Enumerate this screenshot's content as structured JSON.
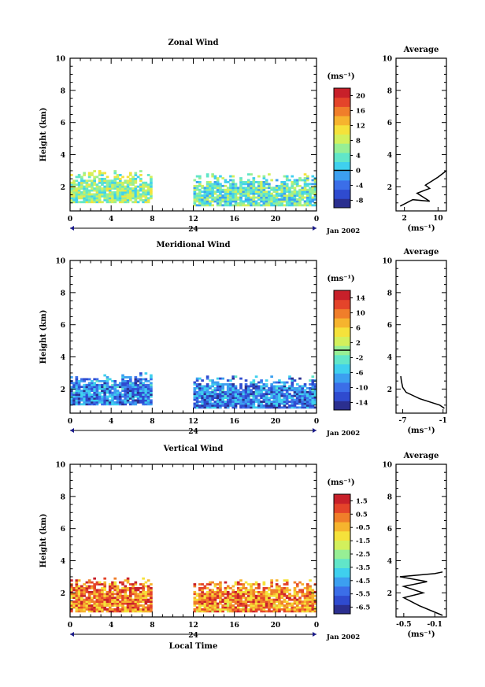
{
  "colors": {
    "colormap": [
      "#2b2f8f",
      "#2f4bcf",
      "#3b6ee8",
      "#3c9ff0",
      "#3fd0ee",
      "#61e6c9",
      "#97ef95",
      "#d3f05c",
      "#f5e23b",
      "#f6b42e",
      "#f07e2a",
      "#e4442a",
      "#c8202a"
    ],
    "profile_line": "#000000",
    "axis": "#000000"
  },
  "date_label": "Jan 2002",
  "x_axis_label": "Local Time",
  "chart_data": [
    {
      "type": "heatmap",
      "title": "Zonal Wind",
      "ylabel": "Height (km)",
      "ylim": [
        0.5,
        10
      ],
      "yticks": [
        2,
        4,
        6,
        8,
        10
      ],
      "xlim": [
        0,
        24
      ],
      "xtick_labels": [
        "0",
        "4",
        "8",
        "12",
        "16",
        "20",
        "0"
      ],
      "day_label": "24",
      "colorbar": {
        "unit": "(ms⁻¹)",
        "ticks": [
          "-8",
          "-4",
          "0",
          "4",
          "8",
          "12",
          "16",
          "20"
        ],
        "range": [
          -10,
          22
        ],
        "marker": 0
      },
      "data_segments": [
        {
          "x": [
            0,
            8
          ],
          "height_range": [
            1.0,
            3.0
          ],
          "typical_value": 6
        },
        {
          "x": [
            12,
            24
          ],
          "height_range": [
            0.8,
            2.8
          ],
          "typical_value": 4
        }
      ],
      "average_profile": {
        "title": "Average",
        "xlabel": "(ms⁻¹)",
        "xticks": [
          "2",
          "10"
        ],
        "xlim": [
          0,
          12
        ],
        "points": [
          [
            1,
            0.8
          ],
          [
            4,
            1.2
          ],
          [
            8,
            1.1
          ],
          [
            5,
            1.6
          ],
          [
            8,
            1.9
          ],
          [
            7,
            2.1
          ],
          [
            10,
            2.6
          ],
          [
            12,
            3.0
          ]
        ]
      }
    },
    {
      "type": "heatmap",
      "title": "Meridional Wind",
      "ylabel": "Height (km)",
      "ylim": [
        0.5,
        10
      ],
      "yticks": [
        2,
        4,
        6,
        8,
        10
      ],
      "xlim": [
        0,
        24
      ],
      "xtick_labels": [
        "0",
        "4",
        "8",
        "12",
        "16",
        "20",
        "0"
      ],
      "day_label": "24",
      "colorbar": {
        "unit": "(ms⁻¹)",
        "ticks": [
          "-14",
          "-10",
          "-6",
          "-2",
          "2",
          "6",
          "10",
          "14"
        ],
        "range": [
          -16,
          16
        ],
        "marker": 0
      },
      "data_segments": [
        {
          "x": [
            0,
            8
          ],
          "height_range": [
            1.0,
            3.0
          ],
          "typical_value": -9
        },
        {
          "x": [
            12,
            24
          ],
          "height_range": [
            0.8,
            2.8
          ],
          "typical_value": -9
        }
      ],
      "average_profile": {
        "title": "Average",
        "xlabel": "(ms⁻¹)",
        "xticks": [
          "-7",
          "-1"
        ],
        "xlim": [
          -8,
          -0.5
        ],
        "points": [
          [
            -0.8,
            0.8
          ],
          [
            -1.5,
            1.0
          ],
          [
            -3,
            1.2
          ],
          [
            -4.5,
            1.4
          ],
          [
            -5.5,
            1.6
          ],
          [
            -6.5,
            1.8
          ],
          [
            -7,
            2.1
          ],
          [
            -7.2,
            2.5
          ],
          [
            -7.3,
            2.8
          ]
        ]
      }
    },
    {
      "type": "heatmap",
      "title": "Vertical Wind",
      "ylabel": "Height (km)",
      "xlabel": "Local Time",
      "ylim": [
        0.5,
        10
      ],
      "yticks": [
        2,
        4,
        6,
        8,
        10
      ],
      "xlim": [
        0,
        24
      ],
      "xtick_labels": [
        "0",
        "4",
        "8",
        "12",
        "16",
        "20",
        "0"
      ],
      "day_label": "24",
      "colorbar": {
        "unit": "(ms⁻¹)",
        "ticks": [
          "-6.5",
          "-5.5",
          "-4.5",
          "-3.5",
          "-2.5",
          "-1.5",
          "-0.5",
          "0.5",
          "1.5"
        ],
        "range": [
          -7,
          2
        ],
        "marker": null
      },
      "data_segments": [
        {
          "x": [
            0,
            8
          ],
          "height_range": [
            0.8,
            3.0
          ],
          "typical_value": 0.4
        },
        {
          "x": [
            12,
            24
          ],
          "height_range": [
            0.8,
            2.8
          ],
          "typical_value": 0.1
        }
      ],
      "average_profile": {
        "title": "Average",
        "xlabel": "(ms⁻¹)",
        "xticks": [
          "-0.5",
          "-0.1"
        ],
        "xlim": [
          -0.6,
          0.05
        ],
        "points": [
          [
            0.0,
            0.6
          ],
          [
            -0.3,
            1.2
          ],
          [
            -0.5,
            1.7
          ],
          [
            -0.25,
            2.0
          ],
          [
            -0.5,
            2.4
          ],
          [
            -0.2,
            2.7
          ],
          [
            -0.55,
            3.0
          ],
          [
            -0.1,
            3.2
          ],
          [
            0.0,
            3.3
          ]
        ]
      }
    }
  ]
}
